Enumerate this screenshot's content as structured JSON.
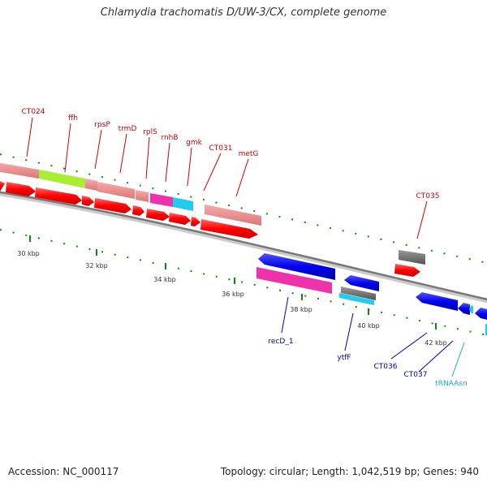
{
  "header": {
    "title": "Chlamydia trachomatis D/UW-3/CX, complete genome"
  },
  "footer": {
    "accession": "Accession: NC_000117",
    "summary": "Topology: circular; Length: 1,042,519 bp; Genes: 940"
  },
  "scale": {
    "ticks": [
      "30 kbp",
      "32 kbp",
      "34 kbp",
      "36 kbp",
      "38 kbp",
      "40 kbp",
      "42 kbp"
    ]
  },
  "genes": {
    "forward": [
      "CT024",
      "ffh",
      "rpsP",
      "trmD",
      "rplS",
      "rnhB",
      "gmk",
      "CT031",
      "metG",
      "CT035"
    ],
    "reverse": [
      "recD_1",
      "ytfF",
      "CT036",
      "CT037",
      "tRNAAsn"
    ]
  },
  "colors": {
    "forward_label": "#cc0000",
    "reverse_label": "#0000aa",
    "trna_label": "#22aacc",
    "cds_forward": "#ff0000",
    "cds_reverse": "#0000ee",
    "feature_salmon": "#ee8888",
    "feature_green": "#aaee33",
    "feature_magenta": "#ee33aa",
    "feature_cyan": "#22ccee",
    "feature_gray": "#777777",
    "backbone": "#888888"
  }
}
